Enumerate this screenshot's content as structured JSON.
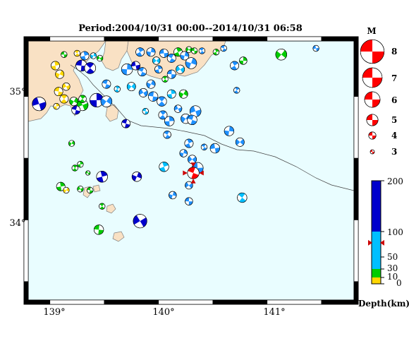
{
  "title": "Period:2004/10/31 00:00--2014/10/31 06:58",
  "map": {
    "lon_labels": [
      "139°",
      "140°",
      "141°"
    ],
    "lat_labels": [
      "35°",
      "34°"
    ],
    "colors": {
      "sea": "#e9fdff",
      "land": "#f9e1c4",
      "coast": "#808080",
      "trench": "#404040",
      "frame": "#000000"
    }
  },
  "magnitude_legend": {
    "title": "M",
    "labels": [
      "8",
      "7",
      "6",
      "5",
      "4",
      "3"
    ],
    "color": "#ff0000"
  },
  "depth_legend": {
    "labels": [
      "200",
      "100",
      "50",
      "30",
      "10",
      "0"
    ],
    "title": "Depth(km)"
  },
  "mechanisms": [
    {
      "lon": 139.13,
      "lat": 35.34,
      "m": 3.5,
      "c": "#00cc00"
    },
    {
      "lon": 139.25,
      "lat": 35.35,
      "m": 3.5,
      "c": "#ffd700"
    },
    {
      "lon": 139.32,
      "lat": 35.33,
      "m": 4.0,
      "c": "#1e90ff"
    },
    {
      "lon": 139.4,
      "lat": 35.33,
      "m": 3.5,
      "c": "#00bfff"
    },
    {
      "lon": 139.46,
      "lat": 35.31,
      "m": 3.5,
      "c": "#00cc00"
    },
    {
      "lon": 139.29,
      "lat": 35.25,
      "m": 4.5,
      "c": "#0000cc"
    },
    {
      "lon": 139.37,
      "lat": 35.23,
      "m": 4.5,
      "c": "#0000cc"
    },
    {
      "lon": 139.05,
      "lat": 35.25,
      "m": 4.0,
      "c": "#ffd700"
    },
    {
      "lon": 139.09,
      "lat": 35.18,
      "m": 4.0,
      "c": "#ffd700"
    },
    {
      "lon": 139.15,
      "lat": 35.08,
      "m": 3.8,
      "c": "#ffd700"
    },
    {
      "lon": 139.08,
      "lat": 35.04,
      "m": 4.0,
      "c": "#ffd700"
    },
    {
      "lon": 139.13,
      "lat": 34.98,
      "m": 4.0,
      "c": "#ffd700"
    },
    {
      "lon": 139.06,
      "lat": 34.92,
      "m": 3.5,
      "c": "#ffd700"
    },
    {
      "lon": 139.22,
      "lat": 34.96,
      "m": 4.0,
      "c": "#00cc00"
    },
    {
      "lon": 139.3,
      "lat": 34.93,
      "m": 4.5,
      "c": "#00cc00"
    },
    {
      "lon": 139.24,
      "lat": 34.89,
      "m": 4.0,
      "c": "#0000cc"
    },
    {
      "lon": 139.3,
      "lat": 34.98,
      "m": 3.8,
      "c": "#00cc00"
    },
    {
      "lon": 139.43,
      "lat": 34.97,
      "m": 5.0,
      "c": "#0000cc"
    },
    {
      "lon": 139.52,
      "lat": 34.96,
      "m": 4.5,
      "c": "#1e90ff"
    },
    {
      "lon": 138.9,
      "lat": 34.94,
      "m": 5.0,
      "c": "#0000cc"
    },
    {
      "lon": 139.52,
      "lat": 35.1,
      "m": 4.0,
      "c": "#1e90ff"
    },
    {
      "lon": 139.62,
      "lat": 35.06,
      "m": 3.5,
      "c": "#00bfff"
    },
    {
      "lon": 139.71,
      "lat": 35.22,
      "m": 4.5,
      "c": "#1e90ff"
    },
    {
      "lon": 139.75,
      "lat": 35.08,
      "m": 4.0,
      "c": "#00bfff"
    },
    {
      "lon": 139.79,
      "lat": 35.25,
      "m": 4.0,
      "c": "#0000cc"
    },
    {
      "lon": 139.85,
      "lat": 35.2,
      "m": 4.0,
      "c": "#1e90ff"
    },
    {
      "lon": 139.83,
      "lat": 35.36,
      "m": 4.0,
      "c": "#1e90ff"
    },
    {
      "lon": 139.93,
      "lat": 35.36,
      "m": 4.0,
      "c": "#1e90ff"
    },
    {
      "lon": 139.98,
      "lat": 35.29,
      "m": 3.8,
      "c": "#00bfff"
    },
    {
      "lon": 140.05,
      "lat": 35.35,
      "m": 4.0,
      "c": "#1e90ff"
    },
    {
      "lon": 140.12,
      "lat": 35.31,
      "m": 4.0,
      "c": "#1e90ff"
    },
    {
      "lon": 140.18,
      "lat": 35.36,
      "m": 4.0,
      "c": "#00cc00"
    },
    {
      "lon": 140.24,
      "lat": 35.33,
      "m": 4.0,
      "c": "#1e90ff"
    },
    {
      "lon": 140.28,
      "lat": 35.38,
      "m": 3.5,
      "c": "#00cc00"
    },
    {
      "lon": 140.33,
      "lat": 35.37,
      "m": 3.5,
      "c": "#00cc00"
    },
    {
      "lon": 140.4,
      "lat": 35.37,
      "m": 3.5,
      "c": "#1e90ff"
    },
    {
      "lon": 140.53,
      "lat": 35.36,
      "m": 3.5,
      "c": "#00cc00"
    },
    {
      "lon": 140.3,
      "lat": 35.27,
      "m": 4.5,
      "c": "#1e90ff"
    },
    {
      "lon": 140.2,
      "lat": 35.22,
      "m": 4.0,
      "c": "#00bfff"
    },
    {
      "lon": 140.12,
      "lat": 35.18,
      "m": 4.0,
      "c": "#1e90ff"
    },
    {
      "lon": 140.06,
      "lat": 35.14,
      "m": 3.5,
      "c": "#00cc00"
    },
    {
      "lon": 140.0,
      "lat": 35.22,
      "m": 3.8,
      "c": "#1e90ff"
    },
    {
      "lon": 139.93,
      "lat": 35.1,
      "m": 4.0,
      "c": "#1e90ff"
    },
    {
      "lon": 139.86,
      "lat": 35.03,
      "m": 4.0,
      "c": "#1e90ff"
    },
    {
      "lon": 139.95,
      "lat": 35.0,
      "m": 4.2,
      "c": "#1e90ff"
    },
    {
      "lon": 140.03,
      "lat": 34.96,
      "m": 4.2,
      "c": "#1e90ff"
    },
    {
      "lon": 140.12,
      "lat": 35.02,
      "m": 4.0,
      "c": "#00bfff"
    },
    {
      "lon": 140.23,
      "lat": 35.02,
      "m": 4.0,
      "c": "#00cc00"
    },
    {
      "lon": 140.18,
      "lat": 34.9,
      "m": 3.8,
      "c": "#1e90ff"
    },
    {
      "lon": 139.88,
      "lat": 34.88,
      "m": 3.5,
      "c": "#00bfff"
    },
    {
      "lon": 140.04,
      "lat": 34.85,
      "m": 4.0,
      "c": "#1e90ff"
    },
    {
      "lon": 140.1,
      "lat": 34.8,
      "m": 4.2,
      "c": "#1e90ff"
    },
    {
      "lon": 140.25,
      "lat": 34.82,
      "m": 4.2,
      "c": "#1e90ff"
    },
    {
      "lon": 140.34,
      "lat": 34.88,
      "m": 4.5,
      "c": "#1e90ff"
    },
    {
      "lon": 140.31,
      "lat": 34.81,
      "m": 4.2,
      "c": "#1e90ff"
    },
    {
      "lon": 140.7,
      "lat": 35.25,
      "m": 4.0,
      "c": "#1e90ff"
    },
    {
      "lon": 140.78,
      "lat": 35.29,
      "m": 3.8,
      "c": "#00cc00"
    },
    {
      "lon": 141.13,
      "lat": 35.34,
      "m": 4.5,
      "c": "#00cc00"
    },
    {
      "lon": 141.45,
      "lat": 35.39,
      "m": 3.5,
      "c": "#1e90ff"
    },
    {
      "lon": 140.6,
      "lat": 35.39,
      "m": 3.5,
      "c": "#1e90ff"
    },
    {
      "lon": 140.72,
      "lat": 35.05,
      "m": 3.5,
      "c": "#1e90ff"
    },
    {
      "lon": 140.65,
      "lat": 34.72,
      "m": 4.2,
      "c": "#1e90ff"
    },
    {
      "lon": 140.75,
      "lat": 34.63,
      "m": 4.0,
      "c": "#1e90ff"
    },
    {
      "lon": 140.52,
      "lat": 34.58,
      "m": 4.2,
      "c": "#1e90ff"
    },
    {
      "lon": 140.42,
      "lat": 34.59,
      "m": 3.5,
      "c": "#1e90ff"
    },
    {
      "lon": 140.28,
      "lat": 34.62,
      "m": 4.0,
      "c": "#1e90ff"
    },
    {
      "lon": 140.23,
      "lat": 34.54,
      "m": 3.8,
      "c": "#1e90ff"
    },
    {
      "lon": 140.31,
      "lat": 34.49,
      "m": 4.0,
      "c": "#1e90ff"
    },
    {
      "lon": 140.36,
      "lat": 34.42,
      "m": 4.5,
      "c": "#1e90ff"
    },
    {
      "lon": 140.08,
      "lat": 34.69,
      "m": 3.8,
      "c": "#1e90ff"
    },
    {
      "lon": 140.05,
      "lat": 34.43,
      "m": 4.2,
      "c": "#00bfff"
    },
    {
      "lon": 140.13,
      "lat": 34.2,
      "m": 3.8,
      "c": "#1e90ff"
    },
    {
      "lon": 140.28,
      "lat": 34.28,
      "m": 3.8,
      "c": "#1e90ff"
    },
    {
      "lon": 140.28,
      "lat": 34.15,
      "m": 3.8,
      "c": "#1e90ff"
    },
    {
      "lon": 140.77,
      "lat": 34.18,
      "m": 4.2,
      "c": "#00bfff"
    },
    {
      "lon": 139.48,
      "lat": 34.35,
      "m": 4.5,
      "c": "#0000cc"
    },
    {
      "lon": 139.8,
      "lat": 34.35,
      "m": 4.2,
      "c": "#0000cc"
    },
    {
      "lon": 139.83,
      "lat": 33.99,
      "m": 5.0,
      "c": "#0000cc"
    },
    {
      "lon": 139.45,
      "lat": 33.92,
      "m": 4.2,
      "c": "#00cc00"
    },
    {
      "lon": 139.48,
      "lat": 34.11,
      "m": 3.5,
      "c": "#00cc00"
    },
    {
      "lon": 139.1,
      "lat": 34.27,
      "m": 4.0,
      "c": "#00cc00"
    },
    {
      "lon": 139.15,
      "lat": 34.24,
      "m": 3.5,
      "c": "#ffd700"
    },
    {
      "lon": 139.28,
      "lat": 34.25,
      "m": 3.5,
      "c": "#00cc00"
    },
    {
      "lon": 139.37,
      "lat": 34.24,
      "m": 3.5,
      "c": "#00cc00"
    },
    {
      "lon": 139.23,
      "lat": 34.42,
      "m": 3.5,
      "c": "#00cc00"
    },
    {
      "lon": 139.28,
      "lat": 34.45,
      "m": 3.5,
      "c": "#00cc00"
    },
    {
      "lon": 139.2,
      "lat": 34.62,
      "m": 3.5,
      "c": "#00cc00"
    },
    {
      "lon": 139.35,
      "lat": 34.38,
      "m": 3.2,
      "c": "#00cc00"
    },
    {
      "lon": 139.7,
      "lat": 34.78,
      "m": 4.0,
      "c": "#0000cc"
    }
  ],
  "main_shock": {
    "lon": 140.32,
    "lat": 34.38,
    "m": 4.6,
    "c": "#ff0000"
  },
  "depth_marker": 78
}
